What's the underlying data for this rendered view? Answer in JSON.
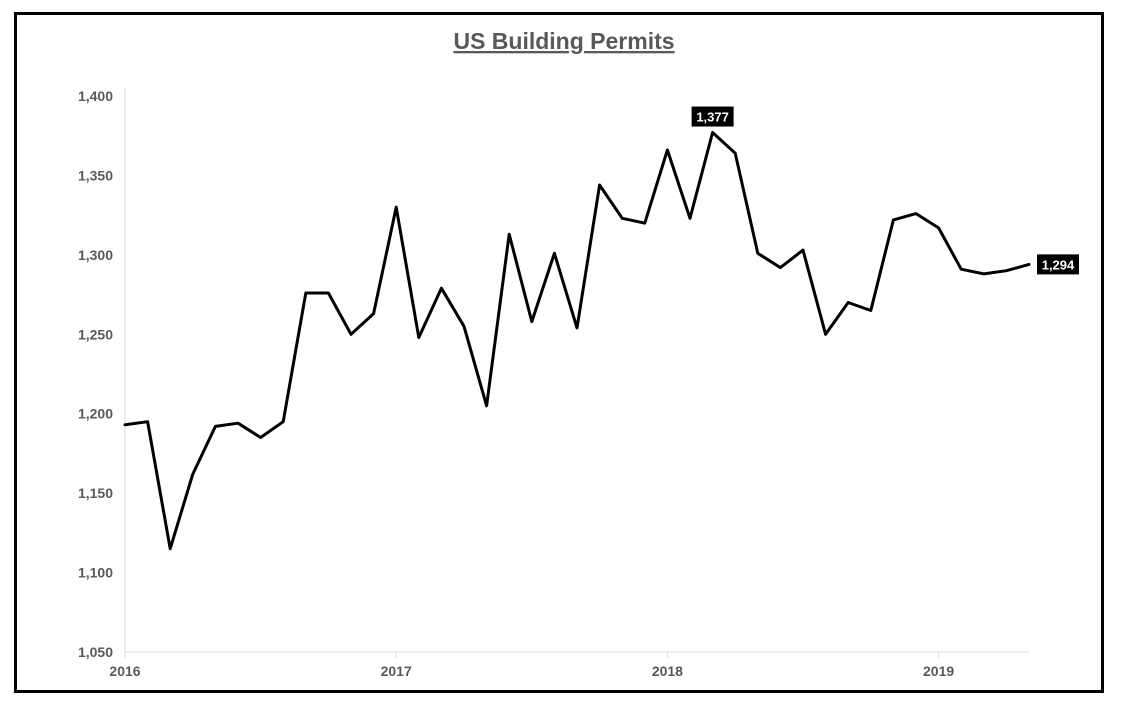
{
  "chart_data": {
    "type": "line",
    "title": "US Building Permits",
    "xlabel": "",
    "ylabel": "",
    "ylim": [
      1050,
      1400
    ],
    "y_ticks": [
      1050,
      1100,
      1150,
      1200,
      1250,
      1300,
      1350,
      1400
    ],
    "y_tick_labels": [
      "1,050",
      "1,100",
      "1,150",
      "1,200",
      "1,250",
      "1,300",
      "1,350",
      "1,400"
    ],
    "x_ticks": [
      "2016-01",
      "2017-01",
      "2018-01",
      "2019-01"
    ],
    "x_tick_labels": [
      "2016",
      "2017",
      "2018",
      "2019"
    ],
    "grid": false,
    "line_color": "#000000",
    "series": [
      {
        "x": [
          "2016-01",
          "2016-02",
          "2016-03",
          "2016-04",
          "2016-05",
          "2016-06",
          "2016-07",
          "2016-08",
          "2016-09",
          "2016-10",
          "2016-11",
          "2016-12",
          "2017-01",
          "2017-02",
          "2017-03",
          "2017-04",
          "2017-05",
          "2017-06",
          "2017-07",
          "2017-08",
          "2017-09",
          "2017-10",
          "2017-11",
          "2017-12",
          "2018-01",
          "2018-02",
          "2018-03",
          "2018-04",
          "2018-05",
          "2018-06",
          "2018-07",
          "2018-08",
          "2018-09",
          "2018-10",
          "2018-11",
          "2018-12",
          "2019-01",
          "2019-02",
          "2019-03",
          "2019-04",
          "2019-05"
        ],
        "values": [
          1193,
          1195,
          1115,
          1162,
          1192,
          1194,
          1185,
          1195,
          1276,
          1276,
          1250,
          1263,
          1330,
          1248,
          1279,
          1255,
          1205,
          1313,
          1258,
          1301,
          1254,
          1344,
          1323,
          1320,
          1366,
          1323,
          1377,
          1364,
          1301,
          1292,
          1303,
          1250,
          1270,
          1265,
          1322,
          1326,
          1317,
          1291,
          1288,
          1290,
          1294
        ]
      }
    ],
    "data_labels": [
      {
        "x": "2018-03",
        "value": 1377,
        "text": "1,377",
        "position": "above"
      },
      {
        "x": "2019-05",
        "value": 1294,
        "text": "1,294",
        "position": "right"
      }
    ]
  }
}
